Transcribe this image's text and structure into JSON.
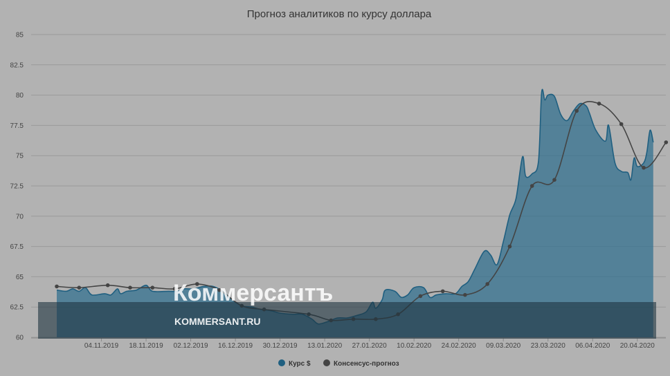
{
  "chart_data": {
    "type": "area",
    "title": "Прогноз аналитиков по курсу доллара",
    "ylim": [
      60,
      85
    ],
    "yticks": [
      "85",
      "82.5",
      "80",
      "77.5",
      "75",
      "72.5",
      "70",
      "67.5",
      "65",
      "62.5",
      "60"
    ],
    "xlim": [
      "2019-10-21",
      "2020-04-22"
    ],
    "xticks": [
      {
        "date": "2019-11-04",
        "label": "04.11.2019"
      },
      {
        "date": "2019-11-18",
        "label": "18.11.2019"
      },
      {
        "date": "2019-12-02",
        "label": "02.12.2019"
      },
      {
        "date": "2019-12-16",
        "label": "16.12.2019"
      },
      {
        "date": "2019-12-30",
        "label": "30.12.2019"
      },
      {
        "date": "2020-01-13",
        "label": "13.01.2020"
      },
      {
        "date": "2020-01-27",
        "label": "27.01.2020"
      },
      {
        "date": "2020-02-10",
        "label": "10.02.2020"
      },
      {
        "date": "2020-02-24",
        "label": "24.02.2020"
      },
      {
        "date": "2020-03-09",
        "label": "09.03.2020"
      },
      {
        "date": "2020-03-23",
        "label": "23.03.2020"
      },
      {
        "date": "2020-04-06",
        "label": "06.04.2020"
      },
      {
        "date": "2020-04-20",
        "label": "20.04.2020"
      }
    ],
    "grid": true,
    "legend_position": "bottom-center",
    "series": [
      {
        "name": "Курс $",
        "type": "area",
        "color": "#1f5f80",
        "points": [
          [
            "2019-10-21",
            63.9
          ],
          [
            "2019-10-24",
            63.8
          ],
          [
            "2019-10-26",
            64.0
          ],
          [
            "2019-10-28",
            63.8
          ],
          [
            "2019-10-30",
            64.1
          ],
          [
            "2019-11-01",
            63.5
          ],
          [
            "2019-11-05",
            63.6
          ],
          [
            "2019-11-07",
            63.5
          ],
          [
            "2019-11-09",
            64.0
          ],
          [
            "2019-11-10",
            63.6
          ],
          [
            "2019-11-12",
            63.8
          ],
          [
            "2019-11-15",
            63.9
          ],
          [
            "2019-11-18",
            64.3
          ],
          [
            "2019-11-20",
            63.8
          ],
          [
            "2019-11-25",
            63.8
          ],
          [
            "2019-11-28",
            63.8
          ],
          [
            "2019-11-30",
            64.0
          ],
          [
            "2019-12-03",
            64.0
          ],
          [
            "2019-12-06",
            64.2
          ],
          [
            "2019-12-09",
            64.2
          ],
          [
            "2019-12-12",
            63.8
          ],
          [
            "2019-12-15",
            63.1
          ],
          [
            "2019-12-18",
            62.6
          ],
          [
            "2019-12-21",
            62.5
          ],
          [
            "2019-12-24",
            62.3
          ],
          [
            "2019-12-27",
            62.2
          ],
          [
            "2019-12-30",
            62.0
          ],
          [
            "2020-01-03",
            61.9
          ],
          [
            "2020-01-06",
            61.9
          ],
          [
            "2020-01-09",
            61.5
          ],
          [
            "2020-01-11",
            61.1
          ],
          [
            "2020-01-14",
            61.3
          ],
          [
            "2020-01-17",
            61.6
          ],
          [
            "2020-01-20",
            61.6
          ],
          [
            "2020-01-23",
            61.8
          ],
          [
            "2020-01-26",
            62.1
          ],
          [
            "2020-01-28",
            62.9
          ],
          [
            "2020-01-29",
            62.4
          ],
          [
            "2020-01-31",
            63.1
          ],
          [
            "2020-02-01",
            63.9
          ],
          [
            "2020-02-04",
            63.8
          ],
          [
            "2020-02-06",
            63.3
          ],
          [
            "2020-02-08",
            63.5
          ],
          [
            "2020-02-10",
            64.1
          ],
          [
            "2020-02-13",
            64.1
          ],
          [
            "2020-02-15",
            63.3
          ],
          [
            "2020-02-17",
            63.5
          ],
          [
            "2020-02-20",
            63.6
          ],
          [
            "2020-02-23",
            63.6
          ],
          [
            "2020-02-25",
            64.2
          ],
          [
            "2020-02-27",
            64.6
          ],
          [
            "2020-02-29",
            65.6
          ],
          [
            "2020-03-03",
            67.1
          ],
          [
            "2020-03-05",
            66.8
          ],
          [
            "2020-03-07",
            66.0
          ],
          [
            "2020-03-09",
            67.9
          ],
          [
            "2020-03-11",
            70.1
          ],
          [
            "2020-03-13",
            71.5
          ],
          [
            "2020-03-15",
            74.9
          ],
          [
            "2020-03-16",
            73.3
          ],
          [
            "2020-03-18",
            73.5
          ],
          [
            "2020-03-20",
            74.5
          ],
          [
            "2020-03-21",
            80.2
          ],
          [
            "2020-03-22",
            79.6
          ],
          [
            "2020-03-23",
            80.0
          ],
          [
            "2020-03-25",
            79.9
          ],
          [
            "2020-03-27",
            78.4
          ],
          [
            "2020-03-29",
            77.9
          ],
          [
            "2020-03-31",
            78.7
          ],
          [
            "2020-04-02",
            79.3
          ],
          [
            "2020-04-04",
            79.1
          ],
          [
            "2020-04-05",
            78.5
          ],
          [
            "2020-04-07",
            77.1
          ],
          [
            "2020-04-10",
            76.2
          ],
          [
            "2020-04-11",
            77.5
          ],
          [
            "2020-04-13",
            74.4
          ],
          [
            "2020-04-15",
            73.7
          ],
          [
            "2020-04-17",
            73.6
          ],
          [
            "2020-04-18",
            73.0
          ],
          [
            "2020-04-19",
            74.8
          ],
          [
            "2020-04-20",
            74.1
          ],
          [
            "2020-04-22",
            74.4
          ],
          [
            "2020-04-23",
            75.3
          ],
          [
            "2020-04-24",
            77.1
          ],
          [
            "2020-04-25",
            76.1
          ]
        ]
      },
      {
        "name": "Консенсус-прогноз",
        "type": "line",
        "color": "#444444",
        "points": [
          [
            "2019-10-21",
            64.2
          ],
          [
            "2019-10-28",
            64.1
          ],
          [
            "2019-11-06",
            64.3
          ],
          [
            "2019-11-13",
            64.1
          ],
          [
            "2019-11-20",
            64.1
          ],
          [
            "2019-11-27",
            64.0
          ],
          [
            "2019-12-04",
            64.4
          ],
          [
            "2019-12-11",
            63.9
          ],
          [
            "2019-12-18",
            62.6
          ],
          [
            "2019-12-25",
            62.3
          ],
          [
            "2020-01-08",
            61.9
          ],
          [
            "2020-01-15",
            61.4
          ],
          [
            "2020-01-22",
            61.5
          ],
          [
            "2020-01-29",
            61.5
          ],
          [
            "2020-02-05",
            61.9
          ],
          [
            "2020-02-12",
            63.4
          ],
          [
            "2020-02-19",
            63.8
          ],
          [
            "2020-02-26",
            63.5
          ],
          [
            "2020-03-04",
            64.4
          ],
          [
            "2020-03-11",
            67.5
          ],
          [
            "2020-03-18",
            72.5
          ],
          [
            "2020-03-25",
            73.0
          ],
          [
            "2020-04-01",
            78.7
          ],
          [
            "2020-04-08",
            79.3
          ],
          [
            "2020-04-15",
            77.6
          ],
          [
            "2020-04-22",
            74.0
          ],
          [
            "2020-04-29",
            76.1
          ]
        ]
      }
    ]
  },
  "watermark": {
    "brand": "Коммерсантъ",
    "url": "KOMMERSANT.RU"
  }
}
